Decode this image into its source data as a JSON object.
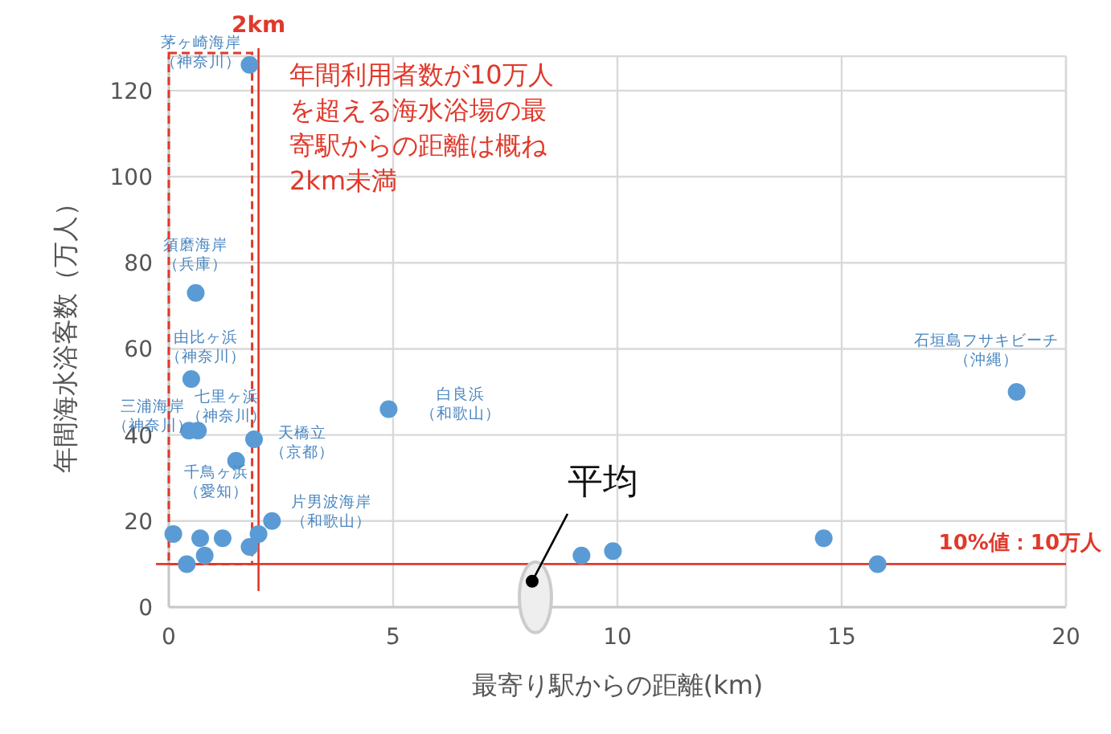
{
  "chart_data": {
    "type": "scatter",
    "xlabel": "最寄り駅からの距離(km)",
    "ylabel": "年間海水浴客数（万人）",
    "xlim": [
      0,
      20
    ],
    "xticks": [
      0,
      5,
      10,
      15,
      20
    ],
    "ylim": [
      0,
      128
    ],
    "yticks": [
      0,
      20,
      40,
      60,
      80,
      100,
      120
    ],
    "grid": true,
    "marker": "circle",
    "series": [
      {
        "color": "#5b9bd5",
        "x": [
          1.8,
          0.6,
          0.5,
          0.45,
          0.65,
          1.5,
          1.9,
          2.3,
          0.1,
          0.7,
          1.2,
          0.8,
          0.4,
          1.8,
          2.0,
          4.9,
          9.2,
          9.9,
          14.6,
          15.8,
          18.9
        ],
        "values": [
          126,
          73,
          53,
          41,
          41,
          34,
          39,
          20,
          17,
          16,
          16,
          12,
          10,
          14,
          17,
          46,
          12,
          13,
          16,
          10,
          50
        ]
      },
      {
        "color": "#000000",
        "x": [
          8.1
        ],
        "values": [
          6
        ]
      }
    ],
    "ref_lines": [
      {
        "axis": "y",
        "value": 10,
        "label": "10%値：10万人",
        "color": "#e0392b"
      },
      {
        "axis": "x",
        "value": 2,
        "label": "2km",
        "color": "#e0392b"
      }
    ],
    "annotations": [
      {
        "text": "茅ヶ崎海岸（神奈川）",
        "x": 1.8,
        "y": 126
      },
      {
        "text": "須磨海岸（兵庫）",
        "x": 0.6,
        "y": 73
      },
      {
        "text": "由比ヶ浜（神奈川）",
        "x": 0.5,
        "y": 53
      },
      {
        "text": "三浦海岸（神奈川）",
        "x": 0.5,
        "y": 41
      },
      {
        "text": "七里ヶ浜（神奈川）",
        "x": 1.5,
        "y": 34
      },
      {
        "text": "天橋立（京都）",
        "x": 1.9,
        "y": 39
      },
      {
        "text": "千鳥ヶ浜（愛知）",
        "x": 1.2,
        "y": 16
      },
      {
        "text": "片男波海岸（和歌山）",
        "x": 2.3,
        "y": 20
      },
      {
        "text": "白良浜（和歌山）",
        "x": 4.9,
        "y": 46
      },
      {
        "text": "石垣島フサキビーチ（沖縄）",
        "x": 18.9,
        "y": 50
      },
      {
        "text": "平均",
        "x": 8.1,
        "y": 6
      },
      "年間利用者数が10万人を超える海水浴場の最寄駅からの距離は概ね2km未満"
    ]
  }
}
